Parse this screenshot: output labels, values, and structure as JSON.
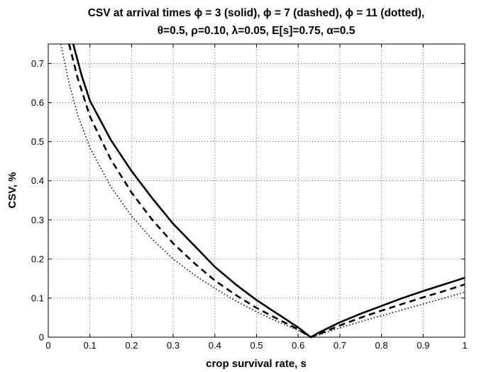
{
  "chart_data": {
    "type": "line",
    "title": [
      "CSV at arrival times ϕ = 3 (solid), ϕ = 7 (dashed), ϕ = 11 (dotted),",
      "θ=0.5, ρ=0.10, λ=0.05, E[s]=0.75, α=0.5"
    ],
    "xlabel": "crop survival rate, s",
    "ylabel": "CSV, %",
    "xlim": [
      0,
      1
    ],
    "ylim": [
      0,
      0.75
    ],
    "xticks": [
      "0",
      "0.1",
      "0.2",
      "0.3",
      "0.4",
      "0.5",
      "0.6",
      "0.7",
      "0.8",
      "0.9",
      "1"
    ],
    "yticks": [
      "0",
      "0.1",
      "0.2",
      "0.3",
      "0.4",
      "0.5",
      "0.6",
      "0.7"
    ],
    "grid": true,
    "legend": "none",
    "series": [
      {
        "style": "solid",
        "color": "#000000",
        "x": [
          0.06,
          0.08,
          0.1,
          0.15,
          0.2,
          0.25,
          0.3,
          0.35,
          0.4,
          0.45,
          0.5,
          0.55,
          0.6,
          0.63,
          0.65,
          0.7,
          0.75,
          0.8,
          0.85,
          0.9,
          0.95,
          1.0
        ],
        "y": [
          0.75,
          0.67,
          0.605,
          0.505,
          0.425,
          0.355,
          0.29,
          0.235,
          0.18,
          0.135,
          0.095,
          0.06,
          0.025,
          0.0,
          0.012,
          0.038,
          0.06,
          0.08,
          0.1,
          0.118,
          0.135,
          0.152
        ]
      },
      {
        "style": "dashed",
        "color": "#000000",
        "x": [
          0.05,
          0.07,
          0.1,
          0.15,
          0.2,
          0.25,
          0.3,
          0.35,
          0.4,
          0.45,
          0.5,
          0.55,
          0.6,
          0.63,
          0.65,
          0.7,
          0.75,
          0.8,
          0.85,
          0.9,
          0.95,
          1.0
        ],
        "y": [
          0.75,
          0.665,
          0.565,
          0.455,
          0.37,
          0.3,
          0.24,
          0.19,
          0.145,
          0.108,
          0.075,
          0.047,
          0.02,
          0.0,
          0.008,
          0.03,
          0.05,
          0.068,
          0.085,
          0.102,
          0.118,
          0.135
        ]
      },
      {
        "style": "dotted",
        "color": "#000000",
        "x": [
          0.03,
          0.05,
          0.07,
          0.1,
          0.15,
          0.2,
          0.25,
          0.3,
          0.35,
          0.4,
          0.45,
          0.5,
          0.55,
          0.6,
          0.63,
          0.65,
          0.7,
          0.75,
          0.8,
          0.85,
          0.9,
          0.95,
          1.0
        ],
        "y": [
          0.75,
          0.65,
          0.57,
          0.485,
          0.385,
          0.31,
          0.25,
          0.2,
          0.16,
          0.125,
          0.093,
          0.065,
          0.04,
          0.018,
          0.0,
          0.006,
          0.024,
          0.04,
          0.055,
          0.07,
          0.085,
          0.1,
          0.115
        ]
      }
    ]
  }
}
